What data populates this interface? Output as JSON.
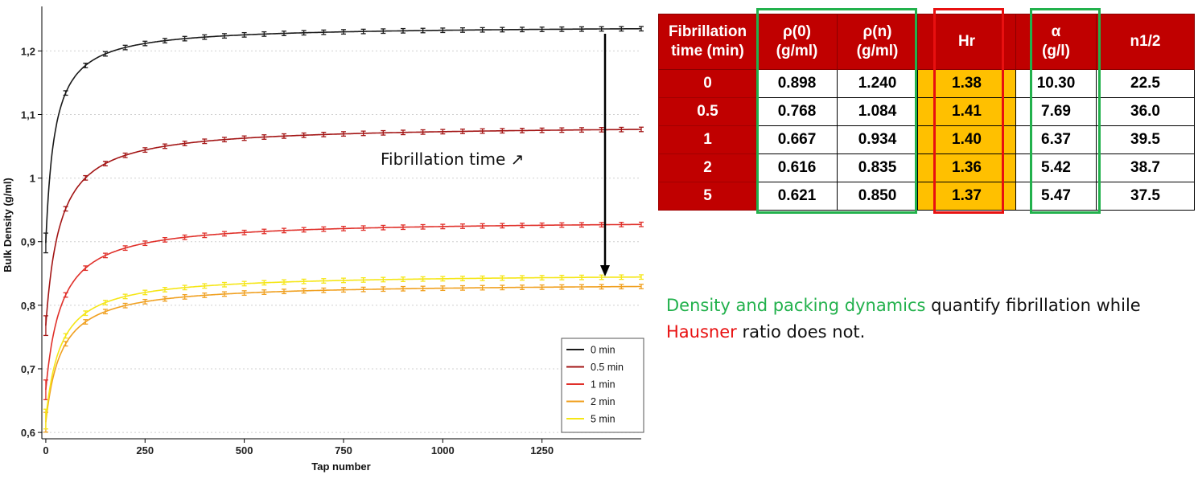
{
  "chart_data": {
    "type": "line",
    "xlabel": "Tap number",
    "ylabel": "Bulk Density (g/ml)",
    "xlim": [
      -10,
      1500
    ],
    "ylim": [
      0.59,
      1.27
    ],
    "x_ticks": [
      "0",
      "250",
      "500",
      "750",
      "1000",
      "1250"
    ],
    "x_tick_values": [
      0,
      250,
      500,
      750,
      1000,
      1250
    ],
    "y_ticks": [
      "0,6",
      "0,7",
      "0,8",
      "0,9",
      "1",
      "1,1",
      "1,2"
    ],
    "y_tick_values": [
      0.6,
      0.7,
      0.8,
      0.9,
      1.0,
      1.1,
      1.2
    ],
    "grid": "horizontal dotted",
    "legend_position": "bottom-right",
    "annotation": "Fibrillation time ↗",
    "series": [
      {
        "name": "0 min",
        "color": "#1a1a1a",
        "rho0": 0.898,
        "rhon": 1.24,
        "nhalf": 22.5
      },
      {
        "name": "0.5 min",
        "color": "#a31515",
        "rho0": 0.768,
        "rhon": 1.084,
        "nhalf": 36.0
      },
      {
        "name": "1 min",
        "color": "#e0302a",
        "rho0": 0.667,
        "rhon": 0.934,
        "nhalf": 39.5
      },
      {
        "name": "2 min",
        "color": "#f0a020",
        "rho0": 0.616,
        "rhon": 0.835,
        "nhalf": 38.7
      },
      {
        "name": "5 min",
        "color": "#f5e616",
        "rho0": 0.621,
        "rhon": 0.85,
        "nhalf": 37.5
      }
    ]
  },
  "table": {
    "headers": [
      {
        "line1": "Fibrillation",
        "line2": "time (min)"
      },
      {
        "line1": "ρ(0)",
        "line2": "(g/ml)"
      },
      {
        "line1": "ρ(n)",
        "line2": "(g/ml)"
      },
      {
        "line1": "Hr",
        "line2": ""
      },
      {
        "line1": "α",
        "line2": "(g/l)"
      },
      {
        "line1": "n1/2",
        "line2": ""
      }
    ],
    "rows": [
      [
        "0",
        "0.898",
        "1.240",
        "1.38",
        "10.30",
        "22.5"
      ],
      [
        "0.5",
        "0.768",
        "1.084",
        "1.41",
        "7.69",
        "36.0"
      ],
      [
        "1",
        "0.667",
        "0.934",
        "1.40",
        "6.37",
        "39.5"
      ],
      [
        "2",
        "0.616",
        "0.835",
        "1.36",
        "5.42",
        "38.7"
      ],
      [
        "5",
        "0.621",
        "0.850",
        "1.37",
        "5.47",
        "37.5"
      ]
    ],
    "colors": {
      "header_bg": "#c00000",
      "hr_bg": "#ffc000",
      "box_green": "#22b14c",
      "box_red": "#e81010"
    }
  },
  "caption": {
    "green_text": "Density and packing dynamics",
    "text1": " quantify fibrillation while",
    "red_text": "Hausner",
    "text2": " ratio does not."
  }
}
